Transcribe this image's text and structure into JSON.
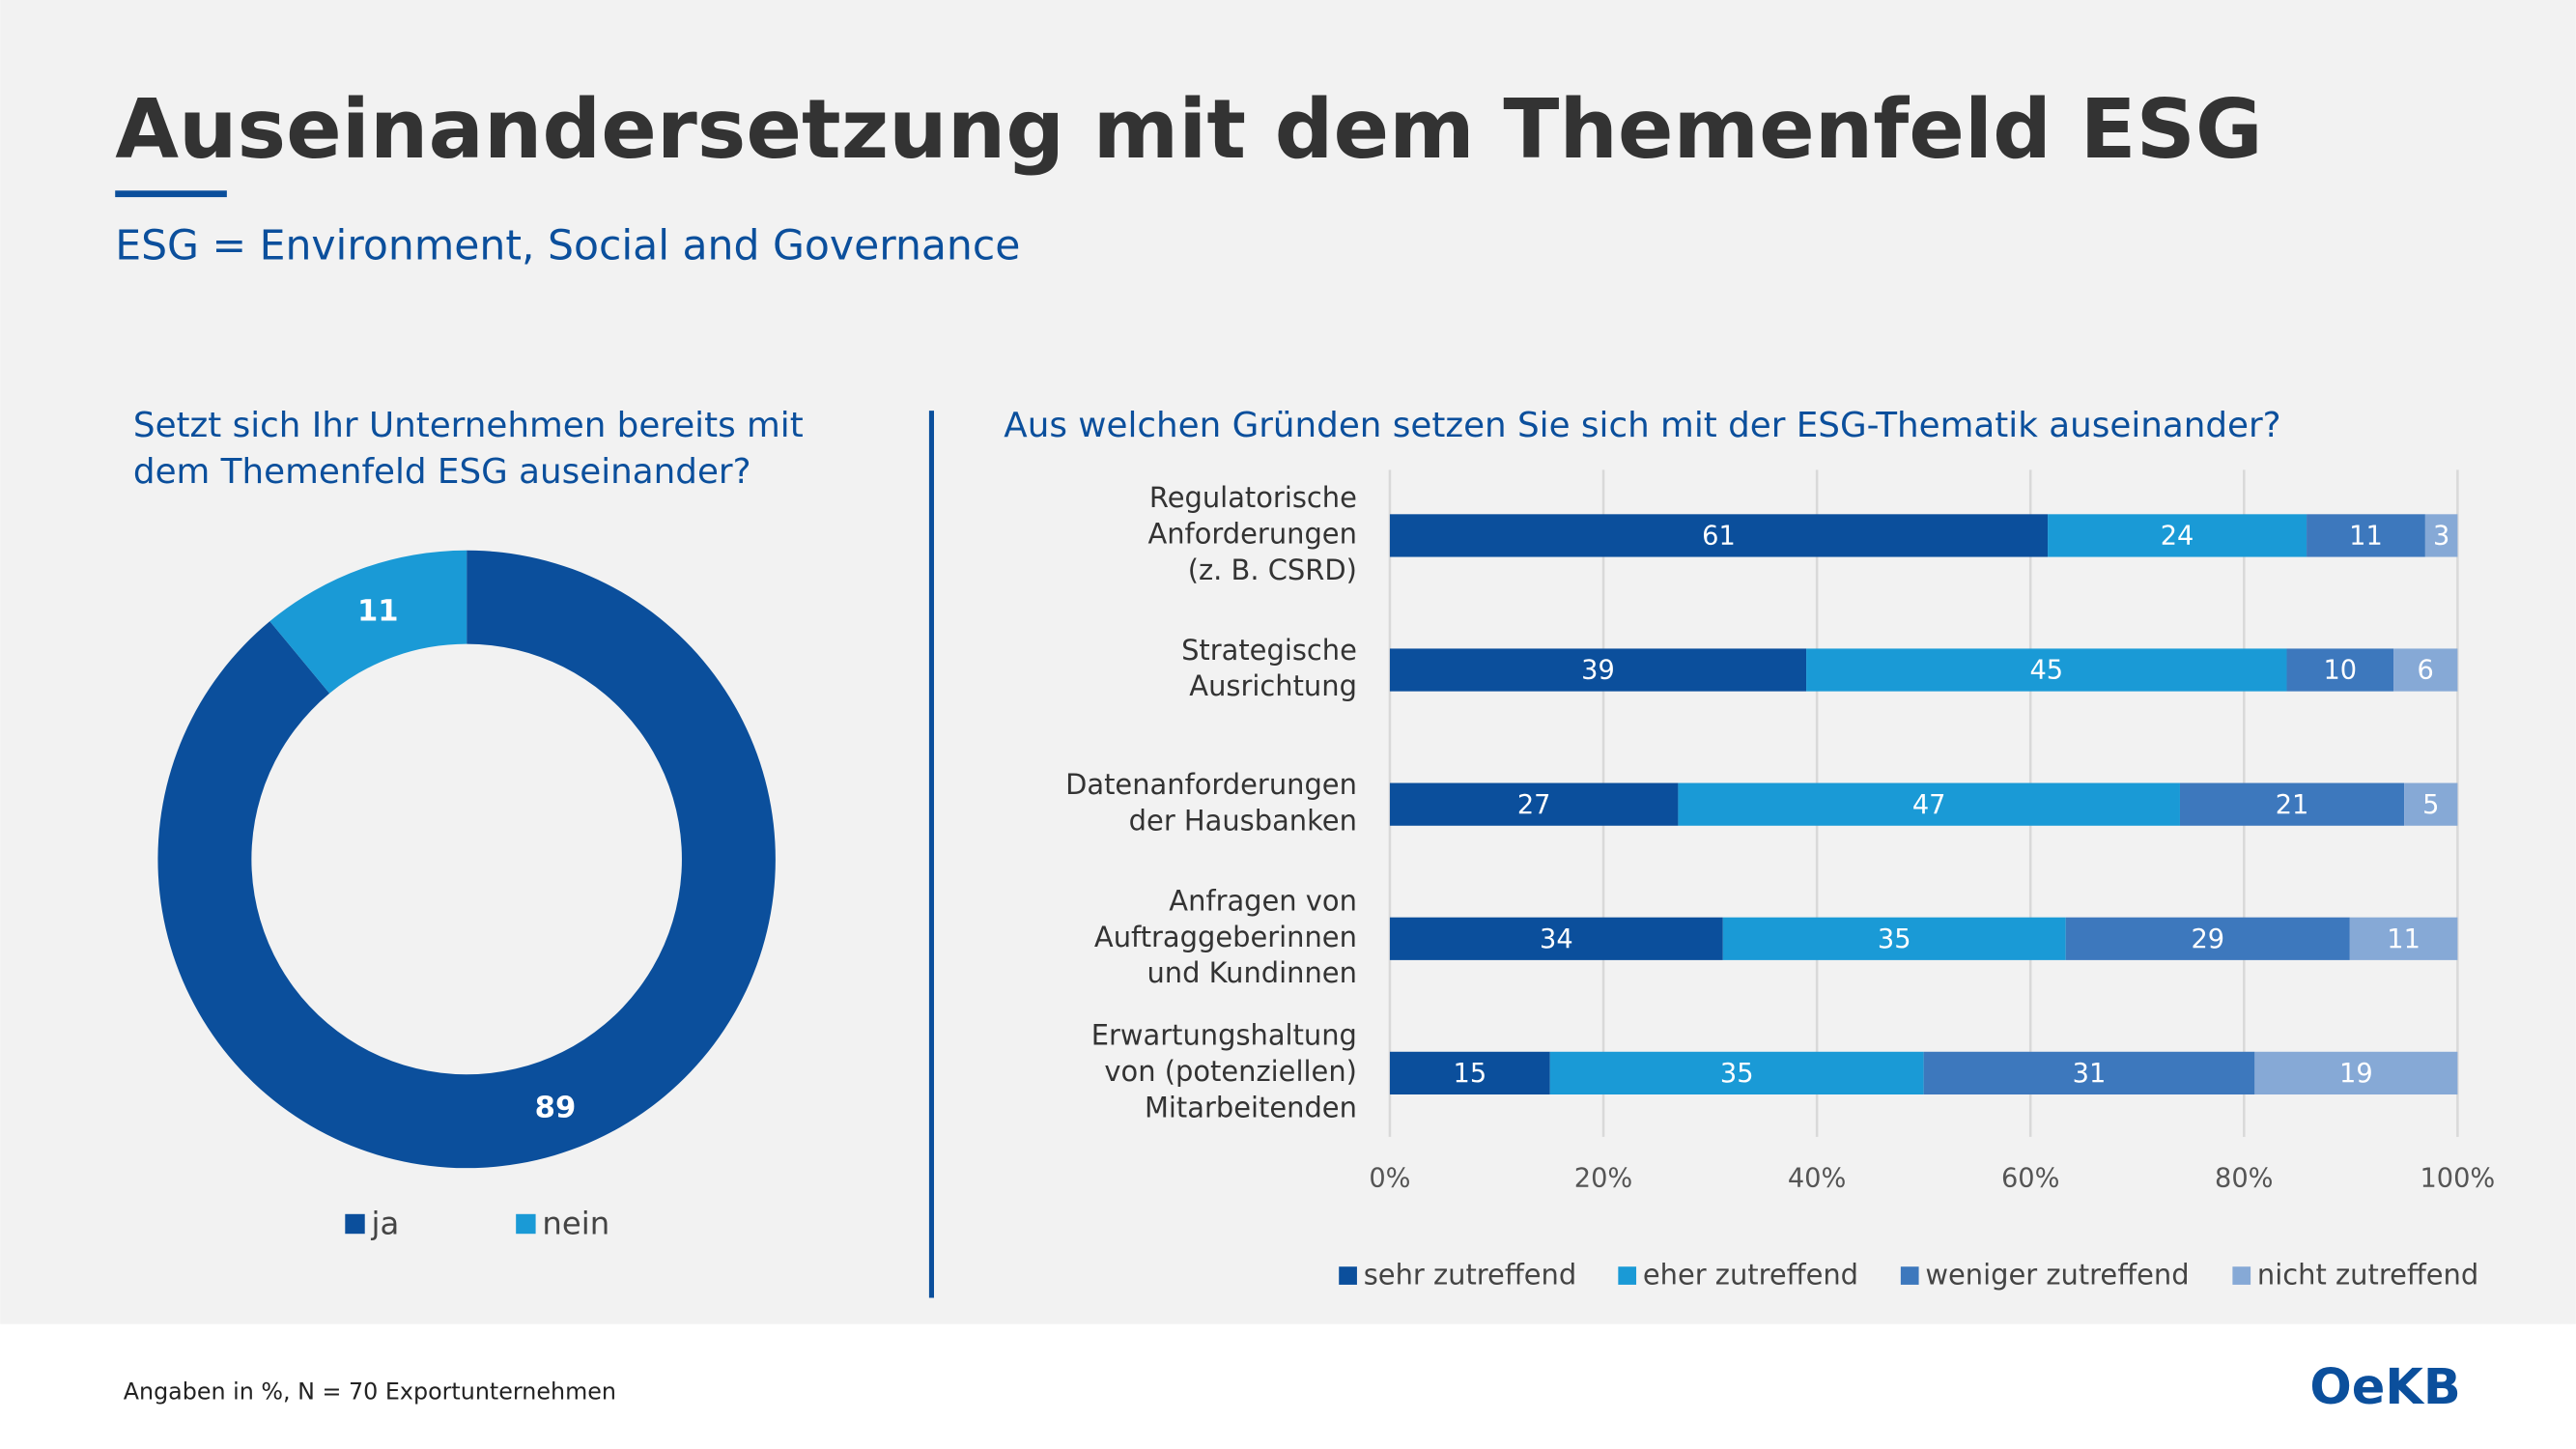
{
  "header": {
    "title": "Auseinandersetzung mit dem Themenfeld ESG",
    "subtitle": "ESG = Environment, Social and Governance"
  },
  "chart_data": [
    {
      "type": "donut",
      "title": [
        "Setzt sich Ihr Unternehmen bereits mit",
        "dem Themenfeld ESG auseinander?"
      ],
      "categories": [
        "ja",
        "nein"
      ],
      "values": [
        89,
        11
      ],
      "colors": [
        "#0b4f9c",
        "#1a9ad6"
      ]
    },
    {
      "type": "stacked-bar-100",
      "orientation": "horizontal",
      "title": "Aus welchen Gründen setzen Sie sich mit der ESG-Thematik auseinander?",
      "categories": [
        [
          "Regulatorische",
          "Anforderungen",
          "(z. B. CSRD)"
        ],
        [
          "Strategische",
          "Ausrichtung"
        ],
        [
          "Datenanforderungen",
          "der Hausbanken"
        ],
        [
          "Anfragen von",
          "Auftraggeberinnen",
          "und Kundinnen"
        ],
        [
          "Erwartungshaltung",
          "von (potenziellen)",
          "Mitarbeitenden"
        ]
      ],
      "series": [
        {
          "name": "sehr zutreffend",
          "color": "#0b4f9c",
          "values": [
            61,
            39,
            27,
            34,
            15
          ]
        },
        {
          "name": "eher zutreffend",
          "color": "#1a9ad6",
          "values": [
            24,
            45,
            47,
            35,
            35
          ]
        },
        {
          "name": "weniger zutreffend",
          "color": "#3d78bd",
          "values": [
            11,
            10,
            21,
            29,
            31
          ]
        },
        {
          "name": "nicht zutreffend",
          "color": "#86a9d6",
          "values": [
            3,
            6,
            5,
            11,
            19
          ]
        }
      ],
      "xlim": [
        0,
        100
      ],
      "xticks": [
        {
          "value": 0,
          "label": "0%"
        },
        {
          "value": 20,
          "label": "20%"
        },
        {
          "value": 40,
          "label": "40%"
        },
        {
          "value": 60,
          "label": "60%"
        },
        {
          "value": 80,
          "label": "80%"
        },
        {
          "value": 100,
          "label": "100%"
        }
      ],
      "grid": true,
      "legend": "bottom"
    }
  ],
  "footer": {
    "note": "Angaben in %, N = 70 Exportunternehmen",
    "logo": "OeKB"
  }
}
